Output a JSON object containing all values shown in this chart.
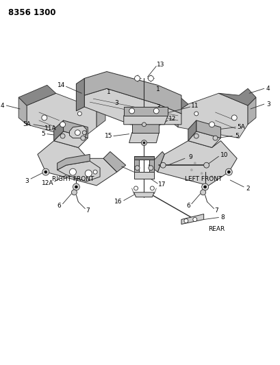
{
  "title": "8356 1300",
  "bg_color": "#ffffff",
  "line_color": "#2a2a2a",
  "text_color": "#000000",
  "title_fontsize": 8.5,
  "label_fontsize": 6.5,
  "section_label_fontsize": 6.5,
  "right_front_label": "RIGHT FRONT",
  "left_front_label": "LEFT FRONT",
  "rear_label": "REAR",
  "gray_light": "#d0d0d0",
  "gray_mid": "#b0b0b0",
  "gray_dark": "#888888",
  "gray_bracket": "#c8c8c8"
}
